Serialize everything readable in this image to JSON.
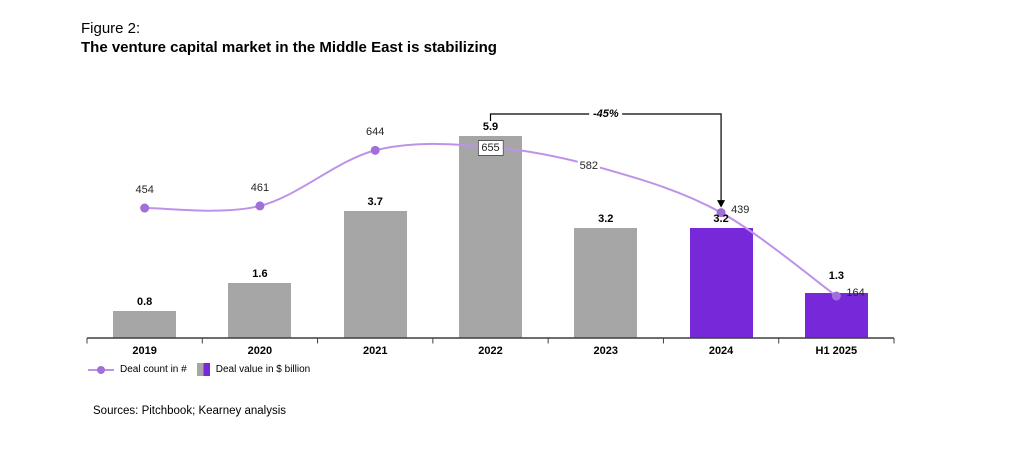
{
  "figure": {
    "label": "Figure 2:",
    "title": "The venture capital market in the Middle East is stabilizing"
  },
  "chart_data": {
    "type": "combo",
    "categories": [
      "2019",
      "2020",
      "2021",
      "2022",
      "2023",
      "2024",
      "H1 2025"
    ],
    "series": [
      {
        "name": "Deal count in #",
        "type": "line",
        "values": [
          454,
          461,
          644,
          655,
          582,
          439,
          164
        ],
        "color": "#bd93ea",
        "marker_color": "#a06fd8"
      },
      {
        "name": "Deal value in $ billion",
        "type": "bar",
        "values": [
          0.8,
          1.6,
          3.7,
          5.9,
          3.2,
          3.2,
          1.3
        ],
        "default_color": "#a6a6a6",
        "highlight_color": "#7728d8",
        "highlighted_categories": [
          "2024",
          "H1 2025"
        ]
      }
    ],
    "annotation": {
      "text": "-45%",
      "from_category": "2022",
      "to_category": "2024"
    },
    "axes": {
      "gridlines": false,
      "value_axes_visible": false
    },
    "legend_position": "bottom-left"
  },
  "legend": {
    "items": [
      {
        "label": "Deal count in #",
        "swatch": "line-marker"
      },
      {
        "label": "Deal value in $ billion",
        "swatch": "split-square"
      }
    ]
  },
  "sources": {
    "text": "Sources: Pitchbook; Kearney analysis"
  }
}
